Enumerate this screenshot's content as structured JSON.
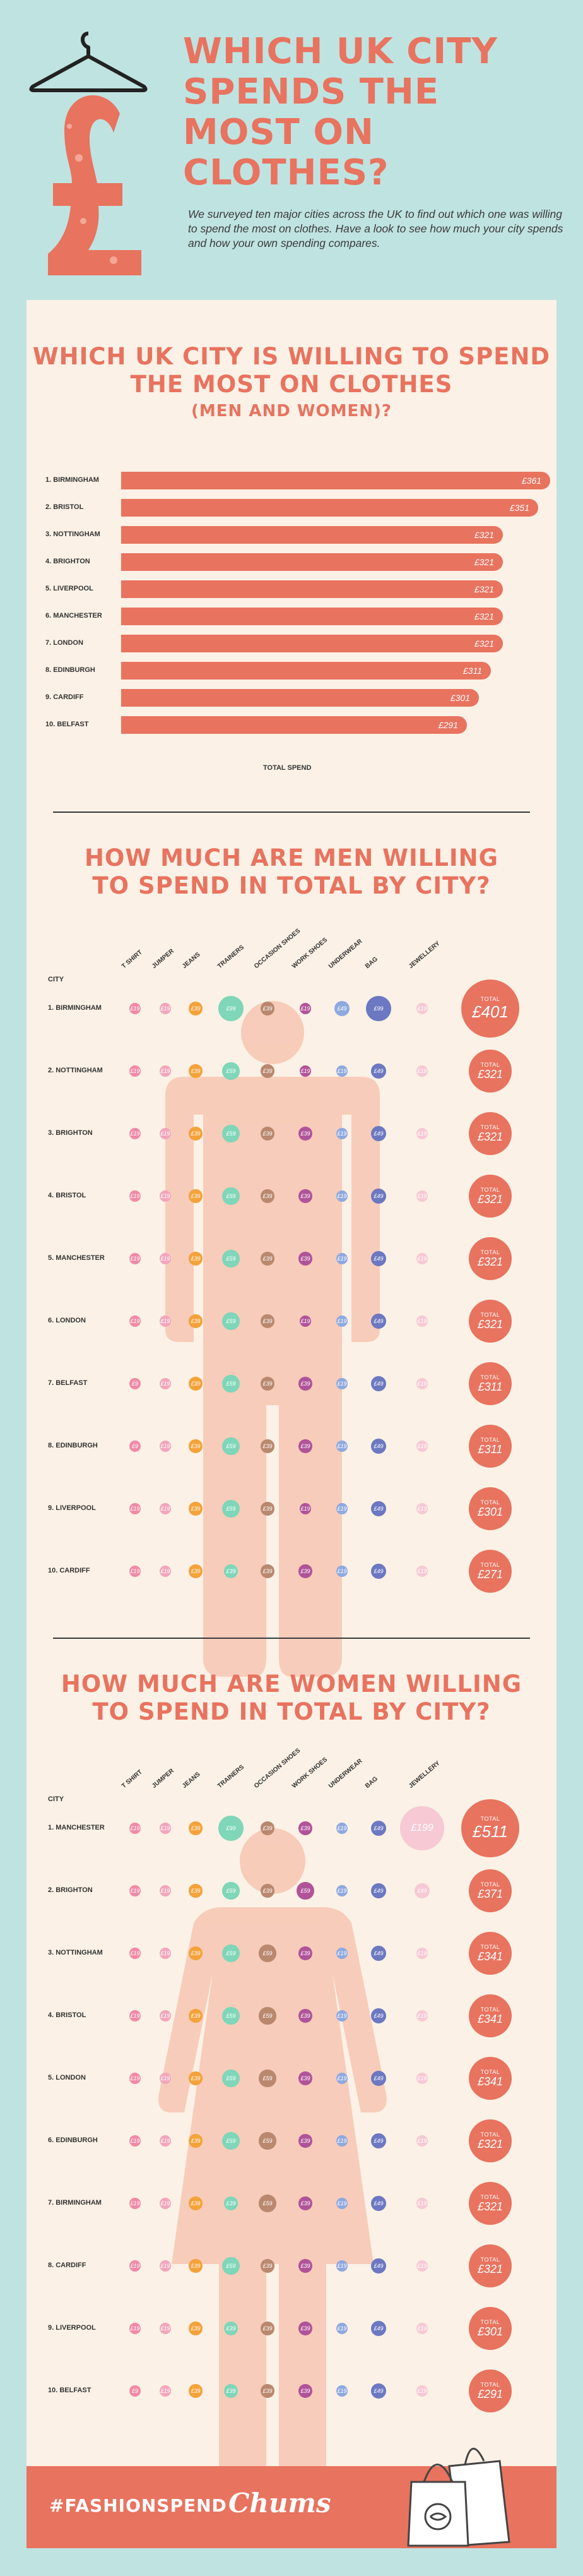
{
  "header": {
    "title": "Which UK City spends the most on clothes?",
    "intro": "We surveyed ten major cities across the UK to find out which one was willing to spend the most on clothes. Have a look to see how much your city spends and how your own spending compares."
  },
  "colors": {
    "accent": "#e8735f",
    "panel": "#fbf1e6",
    "background": "#bfe3e1"
  },
  "section1": {
    "title_line1": "Which UK City is willing to spend",
    "title_line2": "the most on clothes",
    "title_line3": "(Men and Women)?"
  },
  "chart_data": {
    "type": "bar",
    "xlabel": "TOTAL SPEND",
    "categories": [
      "1. BIRMINGHAM",
      "2. BRISTOL",
      "3. NOTTINGHAM",
      "4. BRIGHTON",
      "5. LIVERPOOL",
      "6. MANCHESTER",
      "7. LONDON",
      "8. EDINBURGH",
      "9. CARDIFF",
      "10. BELFAST"
    ],
    "values": [
      361,
      351,
      321,
      321,
      321,
      321,
      321,
      311,
      301,
      291
    ],
    "value_labels": [
      "£361",
      "£351",
      "£321",
      "£321",
      "£321",
      "£321",
      "£321",
      "£311",
      "£301",
      "£291"
    ]
  },
  "men": {
    "title_line1": "How much are men willing",
    "title_line2": "to spend in total by city?",
    "city_header": "CITY",
    "total_label": "TOTAL",
    "columns": [
      "T SHIRT",
      "JUMPER",
      "JEANS",
      "TRAINERS",
      "OCCASION SHOES",
      "WORK SHOES",
      "UNDERWEAR",
      "BAG",
      "JEWELLERY"
    ],
    "rows": [
      {
        "city": "1. BIRMINGHAM",
        "items": [
          "£19",
          "£19",
          "£39",
          "£99",
          "£39",
          "£19",
          "£49",
          "£99",
          "£19"
        ],
        "total": "£401"
      },
      {
        "city": "2. NOTTINGHAM",
        "items": [
          "£19",
          "£19",
          "£39",
          "£59",
          "£39",
          "£19",
          "£19",
          "£49",
          "£19"
        ],
        "total": "£321"
      },
      {
        "city": "3. BRIGHTON",
        "items": [
          "£19",
          "£19",
          "£39",
          "£59",
          "£39",
          "£39",
          "£19",
          "£49",
          "£19"
        ],
        "total": "£321"
      },
      {
        "city": "4. BRISTOL",
        "items": [
          "£19",
          "£19",
          "£39",
          "£59",
          "£39",
          "£39",
          "£19",
          "£49",
          "£19"
        ],
        "total": "£321"
      },
      {
        "city": "5. MANCHESTER",
        "items": [
          "£19",
          "£19",
          "£39",
          "£59",
          "£39",
          "£39",
          "£19",
          "£49",
          "£19"
        ],
        "total": "£321"
      },
      {
        "city": "6. LONDON",
        "items": [
          "£19",
          "£19",
          "£39",
          "£59",
          "£39",
          "£19",
          "£19",
          "£49",
          "£19"
        ],
        "total": "£321"
      },
      {
        "city": "7. BELFAST",
        "items": [
          "£9",
          "£19",
          "£39",
          "£59",
          "£39",
          "£39",
          "£19",
          "£49",
          "£19"
        ],
        "total": "£311"
      },
      {
        "city": "8. EDINBURGH",
        "items": [
          "£9",
          "£19",
          "£39",
          "£59",
          "£39",
          "£39",
          "£19",
          "£49",
          "£19"
        ],
        "total": "£311"
      },
      {
        "city": "9. LIVERPOOL",
        "items": [
          "£19",
          "£19",
          "£39",
          "£59",
          "£39",
          "£19",
          "£19",
          "£49",
          "£19"
        ],
        "total": "£301"
      },
      {
        "city": "10. CARDIFF",
        "items": [
          "£19",
          "£19",
          "£39",
          "£39",
          "£39",
          "£39",
          "£19",
          "£49",
          "£19"
        ],
        "total": "£271"
      }
    ]
  },
  "women": {
    "title_line1": "How much are women willing",
    "title_line2": "to spend in total by city?",
    "city_header": "CITY",
    "total_label": "TOTAL",
    "columns": [
      "T SHIRT",
      "JUMPER",
      "JEANS",
      "TRAINERS",
      "OCCASION SHOES",
      "WORK SHOES",
      "UNDERWEAR",
      "BAG",
      "JEWELLERY"
    ],
    "rows": [
      {
        "city": "1. MANCHESTER",
        "items": [
          "£19",
          "£19",
          "£39",
          "£99",
          "£39",
          "£39",
          "£19",
          "£49",
          "£199"
        ],
        "total": "£511"
      },
      {
        "city": "2. BRIGHTON",
        "items": [
          "£19",
          "£19",
          "£39",
          "£59",
          "£39",
          "£59",
          "£19",
          "£49",
          "£49"
        ],
        "total": "£371"
      },
      {
        "city": "3. NOTTINGHAM",
        "items": [
          "£19",
          "£19",
          "£39",
          "£59",
          "£59",
          "£39",
          "£19",
          "£49",
          "£19"
        ],
        "total": "£341"
      },
      {
        "city": "4. BRISTOL",
        "items": [
          "£19",
          "£19",
          "£39",
          "£59",
          "£59",
          "£39",
          "£19",
          "£49",
          "£19"
        ],
        "total": "£341"
      },
      {
        "city": "5. LONDON",
        "items": [
          "£19",
          "£19",
          "£39",
          "£59",
          "£59",
          "£39",
          "£19",
          "£49",
          "£19"
        ],
        "total": "£341"
      },
      {
        "city": "6. EDINBURGH",
        "items": [
          "£19",
          "£19",
          "£39",
          "£59",
          "£59",
          "£39",
          "£19",
          "£49",
          "£19"
        ],
        "total": "£321"
      },
      {
        "city": "7. BIRMINGHAM",
        "items": [
          "£19",
          "£19",
          "£39",
          "£39",
          "£59",
          "£39",
          "£19",
          "£49",
          "£19"
        ],
        "total": "£321"
      },
      {
        "city": "8. CARDIFF",
        "items": [
          "£19",
          "£19",
          "£39",
          "£59",
          "£39",
          "£39",
          "£19",
          "£49",
          "£19"
        ],
        "total": "£321"
      },
      {
        "city": "9. LIVERPOOL",
        "items": [
          "£19",
          "£19",
          "£39",
          "£39",
          "£39",
          "£39",
          "£19",
          "£49",
          "£19"
        ],
        "total": "£301"
      },
      {
        "city": "10. BELFAST",
        "items": [
          "£9",
          "£19",
          "£39",
          "£39",
          "£39",
          "£39",
          "£19",
          "£49",
          "£19"
        ],
        "total": "£291"
      }
    ]
  },
  "item_colors": [
    "#f08aa6",
    "#f2a6bd",
    "#f4a23a",
    "#7fd6b8",
    "#b9886f",
    "#b0549a",
    "#8fa9df",
    "#6c78c1",
    "#f6c9d5"
  ],
  "footer": {
    "hashtag": "#FASHIONSPEND",
    "logo": "Chums"
  }
}
